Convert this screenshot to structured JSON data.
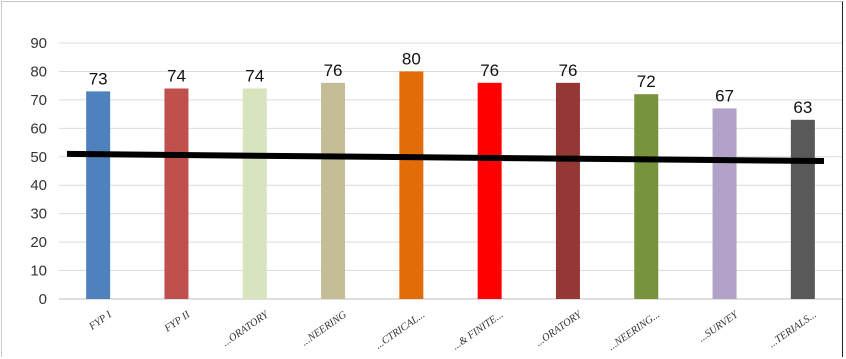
{
  "chart_data": {
    "type": "bar",
    "categories": [
      "FYP I",
      "FYP II",
      "...ORATORY",
      "...NEERING",
      "...CTRICAL...",
      "...& FINITE...",
      "...ORATORY",
      "...NEERING...",
      "...SURVEY",
      "...TERIALS..."
    ],
    "values": [
      73,
      74,
      74,
      76,
      80,
      76,
      76,
      72,
      67,
      63
    ],
    "value_labels": [
      "73",
      "74",
      "74",
      "76",
      "80",
      "76",
      "76",
      "72",
      "67",
      "63"
    ],
    "bar_colors": [
      "#4f81bd",
      "#c0504d",
      "#d7e4bd",
      "#c4bd97",
      "#e36c09",
      "#ff0000",
      "#953735",
      "#77933c",
      "#b3a2c7",
      "#595959"
    ],
    "ylim": [
      0,
      90
    ],
    "yticks": [
      "0",
      "10",
      "20",
      "30",
      "40",
      "50",
      "60",
      "70",
      "80",
      "90"
    ],
    "reference_line": {
      "y_start": 51,
      "y_end": 48.5,
      "color": "#000000"
    },
    "grid": true,
    "title": "",
    "xlabel": "",
    "ylabel": ""
  }
}
